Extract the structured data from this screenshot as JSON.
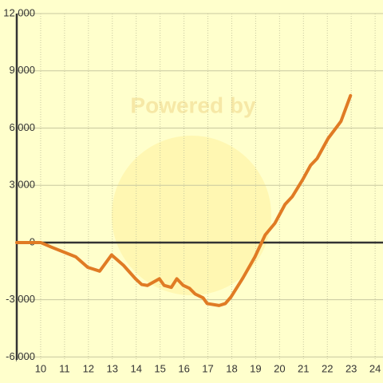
{
  "chart_data": {
    "type": "line",
    "watermark": "Powered by",
    "x": [
      9,
      10,
      10.47,
      11.47,
      11.97,
      12.47,
      12.97,
      13.47,
      13.97,
      14.23,
      14.47,
      14.97,
      15.17,
      15.47,
      15.7,
      15.97,
      16.23,
      16.47,
      16.8,
      16.97,
      17.47,
      17.73,
      17.97,
      18.47,
      18.97,
      19.4,
      19.8,
      20.23,
      20.53,
      20.97,
      21.3,
      21.57,
      22.03,
      22.3,
      22.57,
      22.97
    ],
    "values": [
      0,
      0,
      -250,
      -750,
      -1300,
      -1500,
      -650,
      -1200,
      -1900,
      -2200,
      -2250,
      -1900,
      -2250,
      -2350,
      -1900,
      -2250,
      -2400,
      -2700,
      -2900,
      -3200,
      -3300,
      -3200,
      -2850,
      -1850,
      -750,
      400,
      1000,
      2000,
      2400,
      3300,
      4050,
      4400,
      5450,
      5900,
      6350,
      7700
    ],
    "color": "#e07b24",
    "xlim": [
      9,
      24.33
    ],
    "xticks": [
      10,
      11,
      12,
      13,
      14,
      15,
      16,
      17,
      18,
      19,
      20,
      21,
      22,
      23,
      24
    ],
    "ylim": [
      -6150,
      12000
    ],
    "yticks": [
      {
        "value": -6000,
        "label": "-6,000"
      },
      {
        "value": -3000,
        "label": "-3,000"
      },
      0,
      {
        "value": 3000,
        "label": "3,000"
      },
      {
        "value": 6000,
        "label": "6,000"
      },
      {
        "value": 9000,
        "label": "9,000"
      },
      {
        "value": 12000,
        "label": "12,000"
      }
    ],
    "grid": true
  }
}
